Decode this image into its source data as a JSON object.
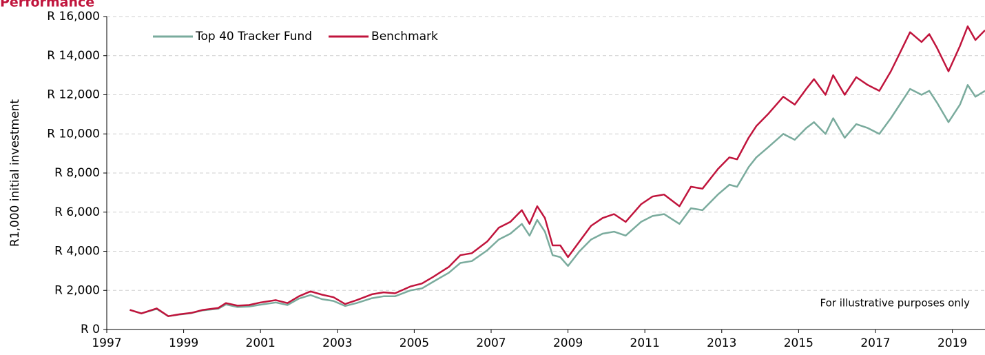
{
  "chart_data": {
    "type": "line",
    "title": "Performance",
    "y_label": "R1,000 initial investment",
    "annotation": "For illustrative purposes only",
    "legend": "top-left",
    "grid": true,
    "x": [
      1997.6,
      1997.9,
      1998.3,
      1998.6,
      1998.9,
      1999.2,
      1999.5,
      1999.9,
      2000.1,
      2000.4,
      2000.7,
      2001.0,
      2001.4,
      2001.7,
      2002.0,
      2002.3,
      2002.6,
      2002.9,
      2003.2,
      2003.5,
      2003.9,
      2004.2,
      2004.5,
      2004.9,
      2005.2,
      2005.5,
      2005.9,
      2006.2,
      2006.5,
      2006.9,
      2007.2,
      2007.5,
      2007.8,
      2008.0,
      2008.2,
      2008.4,
      2008.6,
      2008.8,
      2009.0,
      2009.3,
      2009.6,
      2009.9,
      2010.2,
      2010.5,
      2010.9,
      2011.2,
      2011.5,
      2011.9,
      2012.2,
      2012.5,
      2012.9,
      2013.2,
      2013.4,
      2013.7,
      2013.9,
      2014.2,
      2014.6,
      2014.9,
      2015.2,
      2015.4,
      2015.7,
      2015.9,
      2016.2,
      2016.5,
      2016.8,
      2017.1,
      2017.4,
      2017.6,
      2017.9,
      2018.2,
      2018.4,
      2018.6,
      2018.9,
      2019.2,
      2019.4,
      2019.6,
      2019.85
    ],
    "series": [
      {
        "name": "Top 40 Tracker Fund",
        "color": "#7aab9d",
        "values": [
          1000,
          820,
          1050,
          680,
          770,
          840,
          980,
          1060,
          1280,
          1150,
          1170,
          1270,
          1380,
          1250,
          1580,
          1760,
          1550,
          1460,
          1200,
          1350,
          1600,
          1700,
          1700,
          2000,
          2100,
          2450,
          2900,
          3400,
          3500,
          4050,
          4600,
          4900,
          5400,
          4800,
          5600,
          5000,
          3800,
          3700,
          3250,
          4000,
          4600,
          4900,
          5000,
          4800,
          5500,
          5800,
          5900,
          5400,
          6200,
          6100,
          6900,
          7400,
          7300,
          8300,
          8800,
          9300,
          10000,
          9700,
          10300,
          10600,
          10000,
          10800,
          9800,
          10500,
          10300,
          10000,
          10800,
          11400,
          12300,
          12000,
          12200,
          11600,
          10600,
          11500,
          12500,
          11900,
          12200
        ]
      },
      {
        "name": "Benchmark",
        "color": "#c0143c",
        "values": [
          1000,
          820,
          1080,
          680,
          780,
          850,
          1000,
          1100,
          1350,
          1220,
          1250,
          1380,
          1500,
          1350,
          1700,
          1950,
          1780,
          1650,
          1300,
          1500,
          1800,
          1900,
          1850,
          2200,
          2350,
          2700,
          3200,
          3800,
          3900,
          4500,
          5200,
          5500,
          6100,
          5400,
          6300,
          5700,
          4300,
          4300,
          3700,
          4500,
          5300,
          5700,
          5900,
          5500,
          6400,
          6800,
          6900,
          6300,
          7300,
          7200,
          8200,
          8800,
          8700,
          9800,
          10400,
          11000,
          11900,
          11500,
          12300,
          12800,
          12000,
          13000,
          12000,
          12900,
          12500,
          12200,
          13200,
          14000,
          15200,
          14700,
          15100,
          14400,
          13200,
          14500,
          15500,
          14800,
          15300
        ]
      }
    ],
    "xlim": [
      1997,
      2019.85
    ],
    "xticks": [
      1997,
      1999,
      2001,
      2003,
      2005,
      2007,
      2009,
      2011,
      2013,
      2015,
      2017,
      2019
    ],
    "ylim": [
      0,
      16000
    ],
    "yticks": [
      {
        "value": 0,
        "label": "R 0"
      },
      {
        "value": 2000,
        "label": "R 2,000"
      },
      {
        "value": 4000,
        "label": "R 4,000"
      },
      {
        "value": 6000,
        "label": "R 6,000"
      },
      {
        "value": 8000,
        "label": "R 8,000"
      },
      {
        "value": 10000,
        "label": "R 10,000"
      },
      {
        "value": 12000,
        "label": "R 12,000"
      },
      {
        "value": 14000,
        "label": "R 14,000"
      },
      {
        "value": 16000,
        "label": "R 16,000"
      }
    ]
  }
}
